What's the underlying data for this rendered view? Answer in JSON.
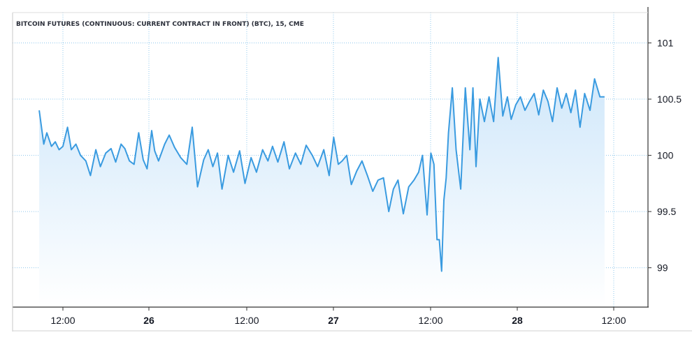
{
  "chart_data": {
    "type": "area",
    "title": "BITCOIN FUTURES (CONTINUOUS: CURRENT CONTRACT IN FRONT) (BTC), 15, CME",
    "xlabel": "",
    "ylabel": "",
    "x_ticks": [
      {
        "label": "12:00",
        "day_boundary": false
      },
      {
        "label": "26",
        "day_boundary": true
      },
      {
        "label": "12:00",
        "day_boundary": false
      },
      {
        "label": "27",
        "day_boundary": true
      },
      {
        "label": "12:00",
        "day_boundary": false
      },
      {
        "label": "28",
        "day_boundary": true
      },
      {
        "label": "12:00",
        "day_boundary": false
      }
    ],
    "y_ticks": [
      101,
      100.5,
      100,
      99.5,
      99
    ],
    "ylim": [
      98.65,
      101.27
    ],
    "grid": true,
    "legend": "none",
    "colors": {
      "line": "#3a9be0",
      "fill_top": "#cde6fa",
      "fill_bottom": "#ffffff",
      "grid": "#8fc8ec"
    },
    "series": [
      {
        "x_hours": [
          -3.1,
          -2.5,
          -2.1,
          -1.5,
          -1.0,
          -0.5,
          0.0,
          0.6,
          1.1,
          1.7,
          2.3,
          3.0,
          3.6,
          4.3,
          4.9,
          5.6,
          6.3,
          6.9,
          7.6,
          8.1,
          8.7,
          9.3,
          9.9,
          10.5,
          11.0,
          11.6,
          12.0,
          12.5,
          13.3,
          13.9,
          14.6,
          15.4,
          16.2,
          16.9,
          17.6,
          18.4,
          19.0,
          19.6,
          20.2,
          20.8,
          21.6,
          22.3,
          23.1,
          23.8,
          24.6,
          25.3,
          26.1,
          26.8,
          27.4,
          28.1,
          28.9,
          29.6,
          30.4,
          31.1,
          31.8,
          32.6,
          33.3,
          34.1,
          34.8,
          35.4,
          36.0,
          36.5,
          37.1,
          37.7,
          38.4,
          39.1,
          39.8,
          40.5,
          41.2,
          41.9,
          42.6,
          43.2,
          43.8,
          44.5,
          45.2,
          45.9,
          46.5,
          47.0,
          47.6,
          48.1,
          48.5,
          48.9,
          49.2,
          49.5,
          49.8,
          50.1,
          50.4,
          50.9,
          51.4,
          52.0,
          52.6,
          53.2,
          53.6,
          54.0,
          54.5,
          55.1,
          55.7,
          56.3,
          56.9,
          57.5,
          58.1,
          58.6,
          59.2,
          59.8,
          60.4,
          61.0,
          61.6,
          62.2,
          62.8,
          63.4,
          64.0,
          64.6,
          65.2,
          65.8,
          66.4,
          67.0,
          67.6,
          68.2,
          68.9,
          69.5,
          70.2,
          70.8
        ],
        "values": [
          100.4,
          100.1,
          100.2,
          100.08,
          100.12,
          100.05,
          100.08,
          100.25,
          100.05,
          100.1,
          100.0,
          99.95,
          99.82,
          100.05,
          99.9,
          100.02,
          100.06,
          99.94,
          100.1,
          100.06,
          99.95,
          99.92,
          100.2,
          99.96,
          99.88,
          100.22,
          100.04,
          99.95,
          100.1,
          100.18,
          100.07,
          99.98,
          99.92,
          100.25,
          99.72,
          99.96,
          100.05,
          99.9,
          100.02,
          99.7,
          100.0,
          99.85,
          100.04,
          99.75,
          99.98,
          99.85,
          100.05,
          99.95,
          100.08,
          99.94,
          100.12,
          99.88,
          100.02,
          99.92,
          100.09,
          100.0,
          99.9,
          100.05,
          99.82,
          100.16,
          99.92,
          99.95,
          100.0,
          99.74,
          99.86,
          99.95,
          99.82,
          99.68,
          99.78,
          99.8,
          99.5,
          99.7,
          99.78,
          99.48,
          99.72,
          99.78,
          99.85,
          100.0,
          99.47,
          100.02,
          99.92,
          99.25,
          99.25,
          98.97,
          99.6,
          99.8,
          100.2,
          100.6,
          100.05,
          99.7,
          100.6,
          100.05,
          100.6,
          99.9,
          100.5,
          100.3,
          100.52,
          100.3,
          100.87,
          100.35,
          100.52,
          100.32,
          100.45,
          100.52,
          100.4,
          100.48,
          100.55,
          100.36,
          100.58,
          100.48,
          100.3,
          100.6,
          100.42,
          100.55,
          100.38,
          100.58,
          100.25,
          100.55,
          100.4,
          100.68,
          100.52,
          100.52
        ]
      }
    ]
  }
}
